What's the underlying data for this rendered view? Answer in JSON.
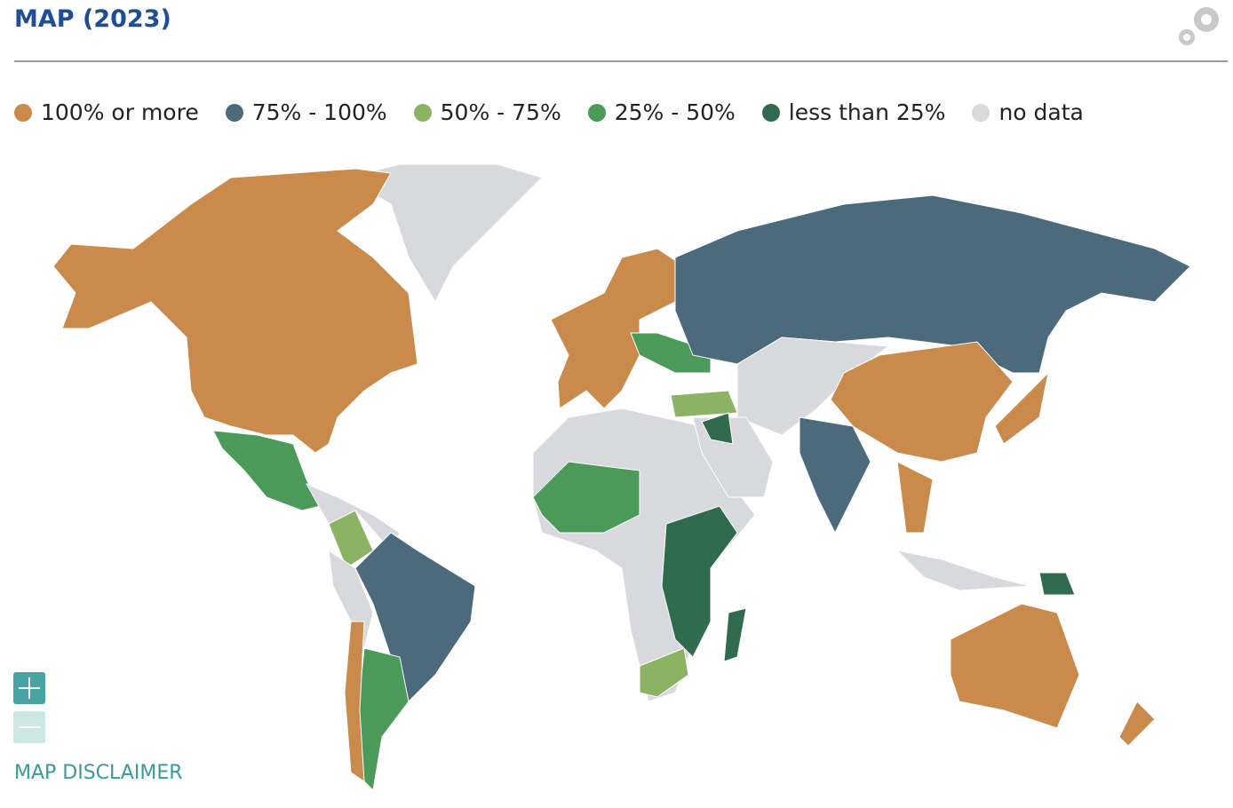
{
  "header": {
    "title": "MAP (2023)"
  },
  "legend": {
    "items": [
      {
        "label": "100% or more",
        "color": "#c98a4b"
      },
      {
        "label": "75% - 100%",
        "color": "#4b6a7c"
      },
      {
        "label": "50% - 75%",
        "color": "#8cb363"
      },
      {
        "label": "25% - 50%",
        "color": "#4b9a5a"
      },
      {
        "label": "less than 25%",
        "color": "#2f6b4c"
      },
      {
        "label": "no data",
        "color": "#d8d9dc"
      }
    ]
  },
  "footer": {
    "disclaimer": "MAP DISCLAIMER"
  }
}
